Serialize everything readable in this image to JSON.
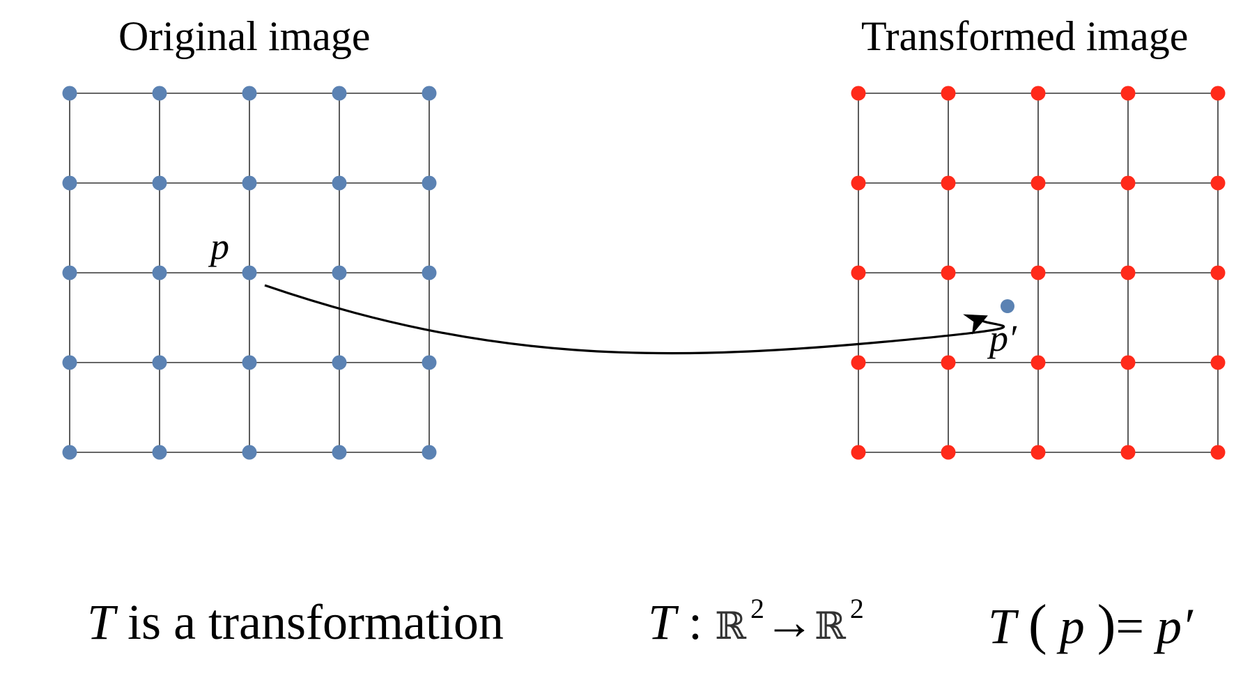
{
  "titles": {
    "original": "Original image",
    "transformed": "Transformed image"
  },
  "grid": {
    "rows": 5,
    "cols": 5
  },
  "colors": {
    "original_points": "#5b82b3",
    "transformed_points": "#ff2a1a",
    "grid_lines": "#333333",
    "arrow": "#000000"
  },
  "labels": {
    "point": "p",
    "mapped_point": "p′"
  },
  "caption": {
    "T": "T",
    "rest": " is a transformation"
  },
  "mapping": {
    "T": "T",
    "colon": ":",
    "domain": "ℝ",
    "domain_exp": "2",
    "arrow": "→",
    "codomain": "ℝ",
    "codomain_exp": "2"
  },
  "equation": {
    "T": "T",
    "open": "(",
    "p": "p",
    "close": ")",
    "eq": "=",
    "rhs": "p′"
  }
}
